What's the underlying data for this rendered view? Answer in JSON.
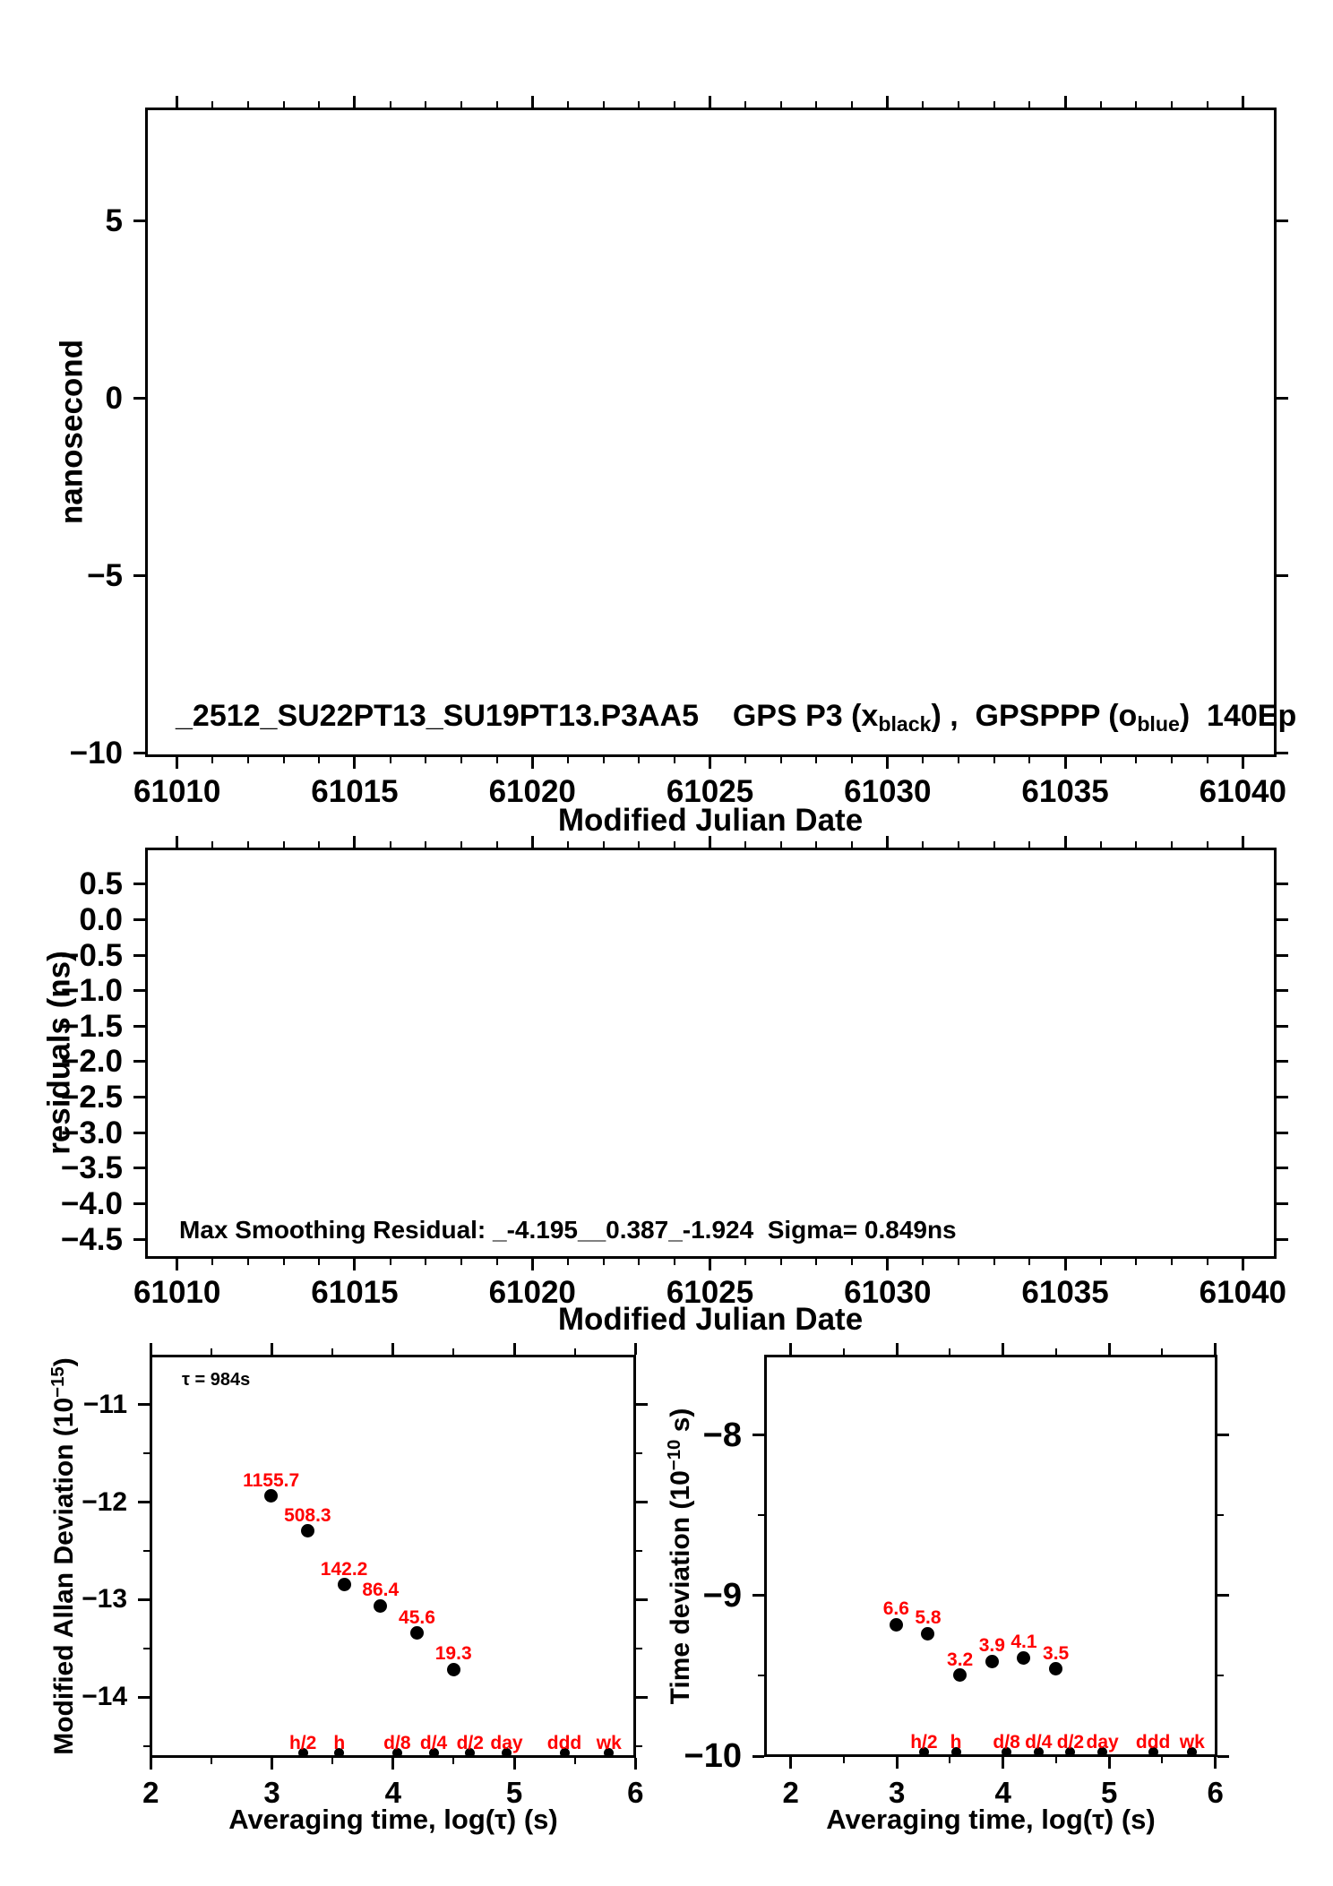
{
  "colors": {
    "ink": "#000000",
    "background": "#ffffff",
    "accent_red": "#ff0000"
  },
  "figure": {
    "top_title_rich": [
      {
        "t": "_2512_SU22PT13_SU19PT13.P3AA5    GPS P3 (x"
      },
      {
        "t": "black",
        "sub": true
      },
      {
        "t": ") ,  GPSPPP (o"
      },
      {
        "t": "blue",
        "sub": true
      },
      {
        "t": ")  140Ep"
      }
    ],
    "residual_annotation": "Max Smoothing Residual: _-4.195__0.387_-1.924  Sigma= 0.849ns",
    "tau_annotation": "τ = 984s",
    "mjd_axis_label": "Modified Julian Date",
    "avg_axis_label": "Averaging time, log(τ) (s)",
    "phase_ylabel": "nanosecond",
    "residuals_ylabel": "residuals (ns)",
    "mdev_ylabel_rich": [
      {
        "t": "Modified Allan Deviation (10"
      },
      {
        "t": "−15",
        "sup": true
      },
      {
        "t": ")"
      }
    ],
    "tdev_ylabel_rich": [
      {
        "t": "Time deviation (10"
      },
      {
        "t": "−10",
        "sup": true
      },
      {
        "t": " s)"
      }
    ]
  },
  "chart_data": [
    {
      "id": "phase",
      "type": "scatter",
      "title": "_2512_SU22PT13_SU19PT13.P3AA5  GPS P3 (x_black), GPSPPP (o_blue)  140Ep",
      "xlabel": "Modified Julian Date",
      "ylabel": "nanosecond",
      "xlim": [
        61009.1,
        61040.95
      ],
      "ylim": [
        -10.12,
        8.2
      ],
      "xticks": [
        61010,
        61015,
        61020,
        61025,
        61030,
        61035,
        61040
      ],
      "xtick_labels": [
        "61010",
        "61015",
        "61020",
        "61025",
        "61030",
        "61035",
        "61040"
      ],
      "yticks": [
        5,
        0,
        -5,
        -10
      ],
      "ytick_labels": [
        "5",
        "0",
        "−5",
        "−10"
      ],
      "x_minor_step": 1,
      "y_minor_step": null,
      "grid": false,
      "series": []
    },
    {
      "id": "residuals",
      "type": "scatter",
      "title": "",
      "annotation": "Max Smoothing Residual: _-4.195__0.387_-1.924  Sigma= 0.849ns",
      "xlabel": "Modified Julian Date",
      "ylabel": "residuals (ns)",
      "xlim": [
        61009.1,
        61040.95
      ],
      "ylim": [
        -4.774,
        1.013
      ],
      "xticks": [
        61010,
        61015,
        61020,
        61025,
        61030,
        61035,
        61040
      ],
      "xtick_labels": [
        "61010",
        "61015",
        "61020",
        "61025",
        "61030",
        "61035",
        "61040"
      ],
      "yticks": [
        0.5,
        0,
        -0.5,
        -1,
        -1.5,
        -2,
        -2.5,
        -3,
        -3.5,
        -4,
        -4.5
      ],
      "ytick_labels": [
        "0.5",
        "0.0",
        "−0.5",
        "−1.0",
        "−1.5",
        "−2.0",
        "−2.5",
        "−3.0",
        "−3.5",
        "−4.0",
        "−4.5"
      ],
      "x_minor_step": 1,
      "y_minor_step": null,
      "grid": false,
      "series": []
    },
    {
      "id": "mdev",
      "type": "scatter",
      "title": "τ = 984s",
      "xlabel": "Averaging time, log(τ) (s)",
      "ylabel": "Modified Allan Deviation (10^-15)",
      "xlim": [
        1.99,
        6.005
      ],
      "ylim": [
        -14.62,
        -10.49
      ],
      "xticks": [
        2,
        3,
        4,
        5,
        6
      ],
      "xtick_labels": [
        "2",
        "3",
        "4",
        "5",
        "6"
      ],
      "yticks": [
        -11,
        -12,
        -13,
        -14
      ],
      "ytick_labels": [
        "−11",
        "−12",
        "−13",
        "−14"
      ],
      "x_minor_step": 0.5,
      "y_minor_step": 0.5,
      "grid": false,
      "x": [
        2.993,
        3.294,
        3.595,
        3.896,
        4.197,
        4.498
      ],
      "y_log10": [
        -11.937,
        -12.294,
        -12.847,
        -13.063,
        -13.341,
        -13.714
      ],
      "values": [
        1155.7,
        508.3,
        142.2,
        86.4,
        45.6,
        19.3
      ],
      "point_labels": [
        "1155.7",
        "508.3",
        "142.2",
        "86.4",
        "45.6",
        "19.3"
      ],
      "time_markers": {
        "labels": [
          "h/2",
          "h",
          "d/8",
          "d/4",
          "d/2",
          "day",
          "ddd",
          "wk"
        ],
        "x": [
          3.2553,
          3.5563,
          4.0334,
          4.3345,
          4.6355,
          4.9365,
          5.4137,
          5.7817
        ]
      }
    },
    {
      "id": "tdev",
      "type": "scatter",
      "title": "",
      "xlabel": "Averaging time, log(τ) (s)",
      "ylabel": "Time deviation (10^-10 s)",
      "xlim": [
        1.75,
        6.02
      ],
      "ylim": [
        -10.005,
        -7.5
      ],
      "xticks": [
        2,
        3,
        4,
        5,
        6
      ],
      "xtick_labels": [
        "2",
        "3",
        "4",
        "5",
        "6"
      ],
      "yticks": [
        -8,
        -9,
        -10
      ],
      "ytick_labels": [
        "−8",
        "−9",
        "−10"
      ],
      "x_minor_step": 0.5,
      "y_minor_step": 0.5,
      "grid": false,
      "x": [
        2.993,
        3.294,
        3.595,
        3.896,
        4.197,
        4.498
      ],
      "y_log10": [
        -9.18,
        -9.237,
        -9.495,
        -9.409,
        -9.387,
        -9.456
      ],
      "values": [
        6.6,
        5.8,
        3.2,
        3.9,
        4.1,
        3.5
      ],
      "point_labels": [
        "6.6",
        "5.8",
        "3.2",
        "3.9",
        "4.1",
        "3.5"
      ],
      "time_markers": {
        "labels": [
          "h/2",
          "h",
          "d/8",
          "d/4",
          "d/2",
          "day",
          "ddd",
          "wk"
        ],
        "x": [
          3.2553,
          3.5563,
          4.0334,
          4.3345,
          4.6355,
          4.9365,
          5.4137,
          5.7817
        ]
      }
    }
  ]
}
